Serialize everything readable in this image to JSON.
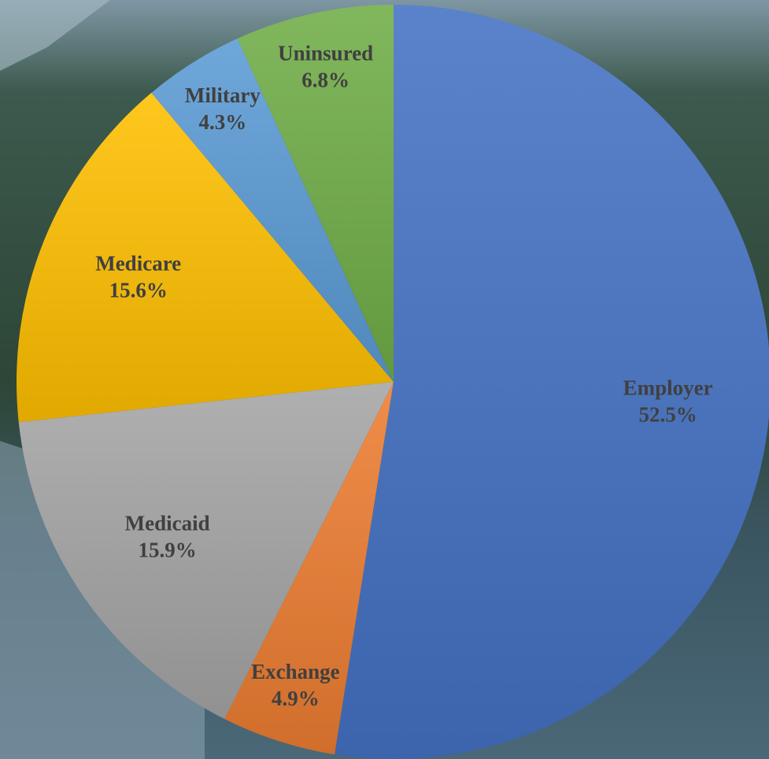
{
  "chart_data": {
    "type": "pie",
    "categories": [
      "Employer",
      "Exchange",
      "Medicaid",
      "Medicare",
      "Military",
      "Uninsured"
    ],
    "values": [
      52.5,
      4.9,
      15.9,
      15.6,
      4.3,
      6.8
    ],
    "value_labels": [
      "52.5%",
      "4.9%",
      "15.9%",
      "15.6%",
      "4.3%",
      "6.8%"
    ],
    "colors": [
      "#4472c4",
      "#ed7d31",
      "#a5a5a5",
      "#ffc000",
      "#5b9bd5",
      "#70ad47"
    ]
  }
}
